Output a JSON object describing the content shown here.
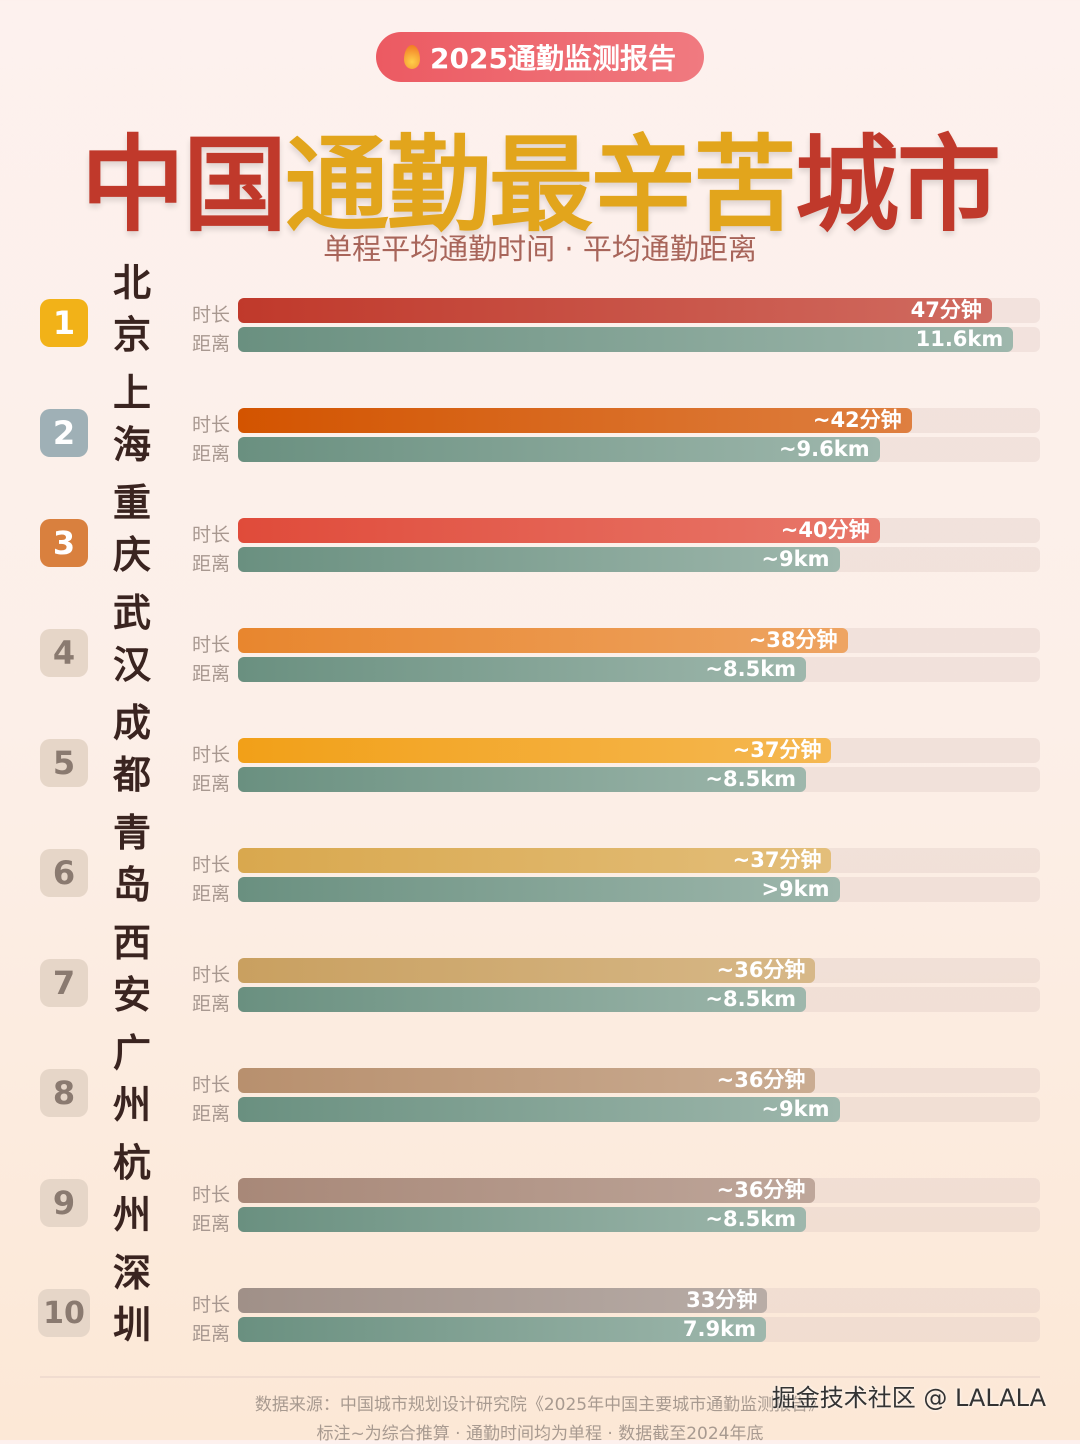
{
  "header": {
    "badge": "2025通勤监测报告",
    "badge_icon": "flame-icon",
    "title_parts": [
      {
        "text": "中国",
        "color": "#c0392b"
      },
      {
        "text": "通勤最辛苦",
        "color": "#e2a51c"
      },
      {
        "text": "城市",
        "color": "#c0392b"
      }
    ],
    "subtitle": "单程平均通勤时间 · 平均通勤距离"
  },
  "labels": {
    "duration": "时长",
    "distance": "距离"
  },
  "chart_data": {
    "type": "bar",
    "orientation": "horizontal",
    "duration_axis_max": 50,
    "distance_axis_max": 12,
    "rows": [
      {
        "rank": "1",
        "city": "北京",
        "duration": 47,
        "duration_label": "47分钟",
        "distance": 11.6,
        "distance_label": "11.6km",
        "badge_color": "#f2b218",
        "dur_color": "#c0392b"
      },
      {
        "rank": "2",
        "city": "上海",
        "duration": 42,
        "duration_label": "~42分钟",
        "distance": 9.6,
        "distance_label": "~9.6km",
        "badge_color": "#9fb0b6",
        "dur_color": "#d35400"
      },
      {
        "rank": "3",
        "city": "重庆",
        "duration": 40,
        "duration_label": "~40分钟",
        "distance": 9,
        "distance_label": "~9km",
        "badge_color": "#d9803e",
        "dur_color": "#e04b3a"
      },
      {
        "rank": "4",
        "city": "武汉",
        "duration": 38,
        "duration_label": "~38分钟",
        "distance": 8.5,
        "distance_label": "~8.5km",
        "badge_color": "#e6d6c8",
        "dur_color": "#e8862e"
      },
      {
        "rank": "5",
        "city": "成都",
        "duration": 37,
        "duration_label": "~37分钟",
        "distance": 8.5,
        "distance_label": "~8.5km",
        "badge_color": "#e6d6c8",
        "dur_color": "#f2a018"
      },
      {
        "rank": "6",
        "city": "青岛",
        "duration": 37,
        "duration_label": "~37分钟",
        "distance": 9,
        "distance_label": ">9km",
        "badge_color": "#e6d6c8",
        "dur_color": "#d9a84e"
      },
      {
        "rank": "7",
        "city": "西安",
        "duration": 36,
        "duration_label": "~36分钟",
        "distance": 8.5,
        "distance_label": "~8.5km",
        "badge_color": "#e6d6c8",
        "dur_color": "#c9a060"
      },
      {
        "rank": "8",
        "city": "广州",
        "duration": 36,
        "duration_label": "~36分钟",
        "distance": 9,
        "distance_label": "~9km",
        "badge_color": "#e6d6c8",
        "dur_color": "#b8906e"
      },
      {
        "rank": "9",
        "city": "杭州",
        "duration": 36,
        "duration_label": "~36分钟",
        "distance": 8.5,
        "distance_label": "~8.5km",
        "badge_color": "#e6d6c8",
        "dur_color": "#a88878"
      },
      {
        "rank": "10",
        "city": "深圳",
        "duration": 33,
        "duration_label": "33分钟",
        "distance": 7.9,
        "distance_label": "7.9km",
        "badge_color": "#e6d6c8",
        "dur_color": "#a09088"
      }
    ],
    "distance_color": "#6a9080"
  },
  "footer": {
    "source": "数据来源：中国城市规划设计研究院《2025年中国主要城市通勤监测报告》",
    "note": "标注~为综合推算 · 通勤时间均为单程 · 数据截至2024年底"
  },
  "watermark": "掘金技术社区 @ LALALA"
}
